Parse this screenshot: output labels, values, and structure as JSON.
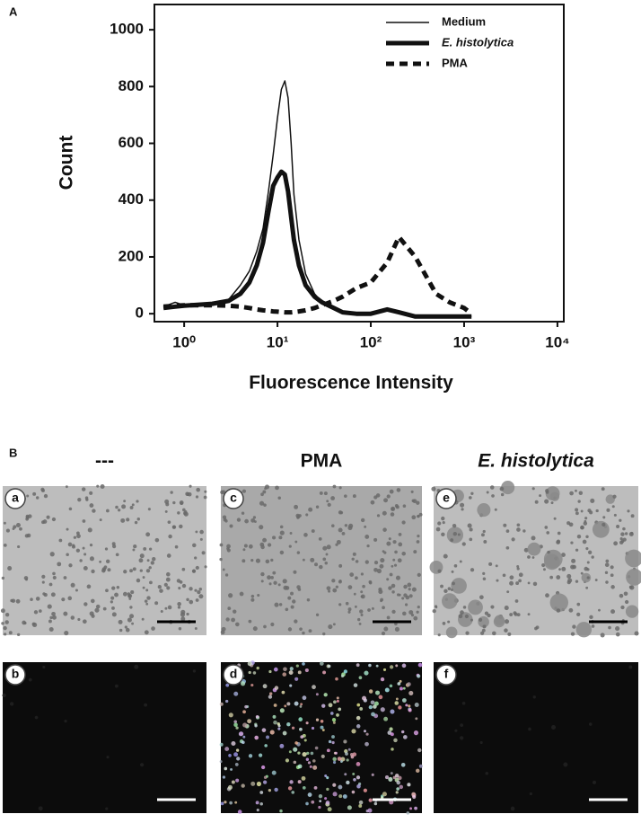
{
  "chart_data": {
    "type": "line",
    "panel_label": "A",
    "xlabel": "Fluorescence Intensity",
    "ylabel": "Count",
    "xscale": "log",
    "x": [
      0.6,
      0.8,
      1,
      2,
      3,
      4,
      5,
      6,
      7,
      8,
      9,
      10,
      11,
      12,
      13,
      14,
      15,
      17,
      20,
      25,
      30,
      40,
      50,
      70,
      100,
      150,
      200,
      300,
      500,
      700,
      1000,
      1200
    ],
    "series": [
      {
        "name": "Medium",
        "color": "#111111",
        "style": "solid",
        "width": 1.5,
        "values": [
          25,
          40,
          30,
          35,
          50,
          100,
          150,
          220,
          300,
          430,
          560,
          690,
          790,
          820,
          760,
          600,
          420,
          260,
          140,
          70,
          40,
          20,
          5,
          0,
          0,
          10,
          5,
          -10,
          -10,
          -10,
          -10,
          -10
        ]
      },
      {
        "name": "E. histolytica",
        "color": "#111111",
        "style": "solid",
        "width": 5,
        "values": [
          20,
          25,
          28,
          35,
          45,
          70,
          110,
          170,
          250,
          360,
          450,
          480,
          500,
          490,
          430,
          340,
          260,
          170,
          100,
          60,
          40,
          20,
          5,
          0,
          0,
          15,
          5,
          -10,
          -10,
          -10,
          -10,
          -10
        ]
      },
      {
        "name": "PMA",
        "color": "#111111",
        "style": "dashed",
        "width": 5,
        "values": [
          25,
          28,
          30,
          30,
          28,
          25,
          20,
          15,
          12,
          10,
          8,
          7,
          6,
          5,
          5,
          5,
          6,
          8,
          12,
          20,
          30,
          45,
          60,
          90,
          110,
          180,
          270,
          200,
          70,
          40,
          20,
          0
        ]
      }
    ],
    "xlim": [
      0.48,
      11700
    ],
    "xticks": [
      {
        "value": 1,
        "label": "10⁰"
      },
      {
        "value": 10,
        "label": "10¹"
      },
      {
        "value": 100,
        "label": "10²"
      },
      {
        "value": 1000,
        "label": "10³"
      },
      {
        "value": 10000,
        "label": "10⁴"
      }
    ],
    "ylim": [
      -28,
      1089
    ],
    "yticks": [
      0,
      200,
      400,
      600,
      800,
      1000
    ],
    "legend": "top-right"
  },
  "panel_b": {
    "label": "B",
    "columns": [
      "---",
      "PMA",
      "E. histolytica"
    ],
    "images": [
      [
        "a",
        "b"
      ],
      [
        "c",
        "d"
      ],
      [
        "e",
        "f"
      ]
    ]
  }
}
